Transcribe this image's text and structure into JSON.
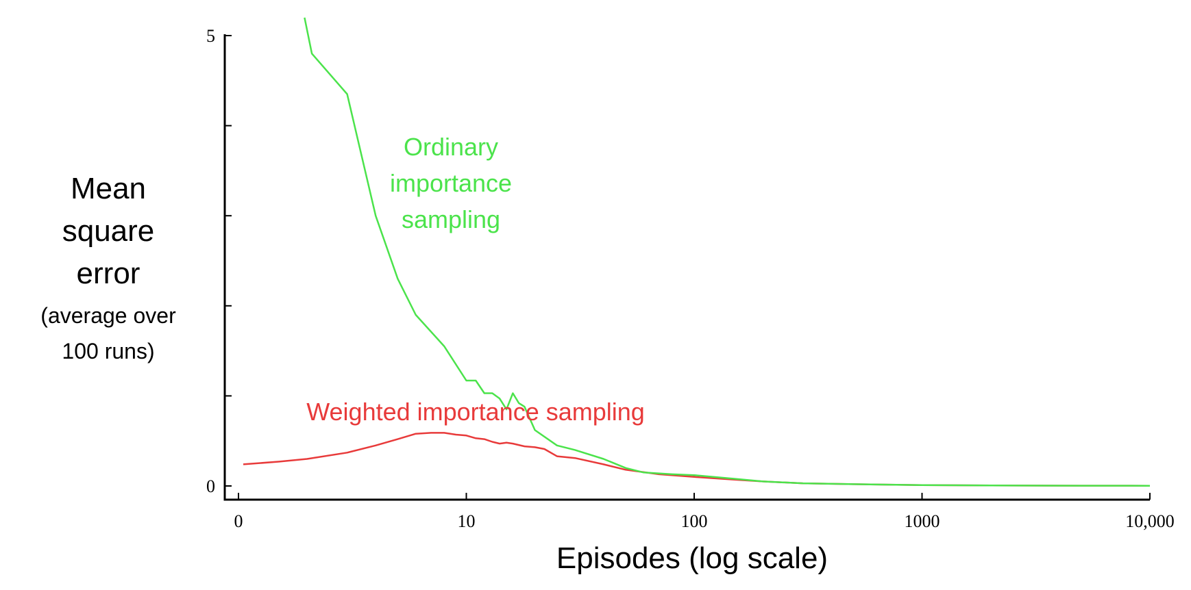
{
  "chart_data": {
    "type": "line",
    "title": "",
    "xlabel": "Episodes (log scale)",
    "ylabel_lines": [
      "Mean",
      "square",
      "error"
    ],
    "ylabel_sub_lines": [
      "(average over",
      "100 runs)"
    ],
    "x_scale": "log",
    "xlim": [
      1,
      10000
    ],
    "ylim": [
      0,
      5
    ],
    "x_ticks": [
      {
        "value": 1,
        "label": "0"
      },
      {
        "value": 10,
        "label": "10"
      },
      {
        "value": 100,
        "label": "100"
      },
      {
        "value": 1000,
        "label": "1000"
      },
      {
        "value": 10000,
        "label": "10,000"
      }
    ],
    "y_ticks": [
      {
        "value": 0,
        "label": "0"
      },
      {
        "value": 1,
        "label": ""
      },
      {
        "value": 2,
        "label": ""
      },
      {
        "value": 3,
        "label": ""
      },
      {
        "value": 4,
        "label": ""
      },
      {
        "value": 5,
        "label": "5"
      }
    ],
    "grid": false,
    "series": [
      {
        "name": "Ordinary importance sampling",
        "label_lines": [
          "Ordinary",
          "importance",
          "sampling"
        ],
        "color": "#4be34b",
        "x": [
          1.95,
          2.1,
          3,
          4,
          5,
          6,
          8,
          10,
          11,
          12,
          13,
          14,
          15,
          16,
          17,
          18,
          20,
          25,
          30,
          40,
          50,
          60,
          80,
          100,
          150,
          200,
          300,
          500,
          1000,
          2000,
          5000,
          10000
        ],
        "y": [
          5.2,
          4.8,
          4.35,
          3.0,
          2.3,
          1.9,
          1.55,
          1.17,
          1.17,
          1.03,
          1.03,
          0.97,
          0.85,
          1.03,
          0.92,
          0.88,
          0.62,
          0.45,
          0.4,
          0.3,
          0.2,
          0.15,
          0.13,
          0.12,
          0.08,
          0.05,
          0.03,
          0.02,
          0.01,
          0.005,
          0.003,
          0.002
        ]
      },
      {
        "name": "Weighted importance sampling",
        "label_lines": [
          "Weighted importance sampling"
        ],
        "color": "#e83a3a",
        "x": [
          1.05,
          1.5,
          2,
          3,
          4,
          5,
          6,
          7,
          8,
          9,
          10,
          11,
          12,
          13,
          14,
          15,
          16,
          18,
          20,
          22,
          25,
          30,
          40,
          50,
          70,
          100,
          150,
          200,
          300,
          500,
          1000,
          2000,
          5000,
          10000
        ],
        "y": [
          0.24,
          0.27,
          0.3,
          0.37,
          0.45,
          0.52,
          0.58,
          0.59,
          0.59,
          0.57,
          0.56,
          0.53,
          0.52,
          0.49,
          0.47,
          0.48,
          0.47,
          0.44,
          0.43,
          0.41,
          0.33,
          0.31,
          0.24,
          0.18,
          0.13,
          0.1,
          0.07,
          0.05,
          0.03,
          0.02,
          0.01,
          0.005,
          0.003,
          0.002
        ]
      }
    ]
  }
}
